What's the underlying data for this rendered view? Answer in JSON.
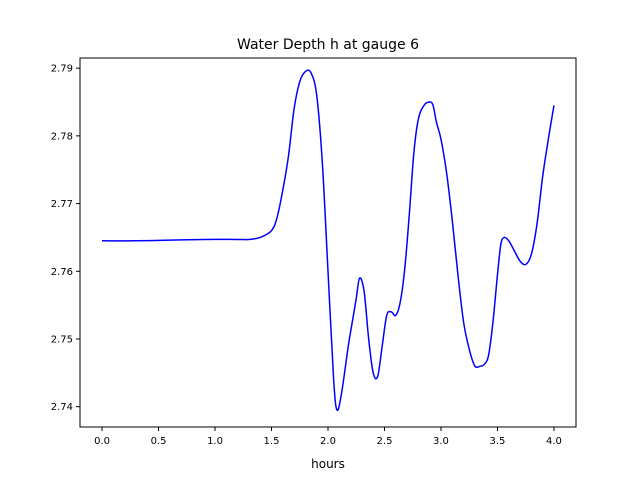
{
  "chart_data": {
    "type": "line",
    "title": "Water Depth h at gauge 6",
    "xlabel": "hours",
    "ylabel": "",
    "xlim": [
      -0.195,
      4.195
    ],
    "ylim": [
      2.737,
      2.7915
    ],
    "xticks": [
      0.0,
      0.5,
      1.0,
      1.5,
      2.0,
      2.5,
      3.0,
      3.5,
      4.0
    ],
    "xtick_labels": [
      "0.0",
      "0.5",
      "1.0",
      "1.5",
      "2.0",
      "2.5",
      "3.0",
      "3.5",
      "4.0"
    ],
    "yticks": [
      2.74,
      2.75,
      2.76,
      2.77,
      2.78,
      2.79
    ],
    "ytick_labels": [
      "2.74",
      "2.75",
      "2.76",
      "2.77",
      "2.78",
      "2.79"
    ],
    "grid": false,
    "series": [
      {
        "color": "#0000ff",
        "x": [
          0.0,
          0.3,
          0.6,
          0.9,
          1.2,
          1.3,
          1.4,
          1.5,
          1.55,
          1.6,
          1.65,
          1.7,
          1.75,
          1.8,
          1.85,
          1.9,
          1.95,
          2.0,
          2.05,
          2.08,
          2.12,
          2.18,
          2.22,
          2.25,
          2.28,
          2.32,
          2.36,
          2.4,
          2.44,
          2.48,
          2.52,
          2.56,
          2.6,
          2.64,
          2.68,
          2.72,
          2.76,
          2.8,
          2.85,
          2.9,
          2.93,
          2.96,
          3.0,
          3.05,
          3.1,
          3.15,
          3.2,
          3.25,
          3.3,
          3.35,
          3.38,
          3.42,
          3.46,
          3.5,
          3.53,
          3.56,
          3.6,
          3.65,
          3.7,
          3.75,
          3.8,
          3.85,
          3.9,
          3.95,
          4.0
        ],
        "y": [
          2.7645,
          2.7645,
          2.7646,
          2.7647,
          2.7647,
          2.7647,
          2.765,
          2.766,
          2.768,
          2.772,
          2.777,
          2.784,
          2.788,
          2.7895,
          2.7893,
          2.786,
          2.776,
          2.76,
          2.744,
          2.7395,
          2.742,
          2.749,
          2.753,
          2.756,
          2.759,
          2.757,
          2.75,
          2.745,
          2.7445,
          2.749,
          2.7535,
          2.754,
          2.7535,
          2.7555,
          2.7605,
          2.7685,
          2.7775,
          2.7825,
          2.7845,
          2.785,
          2.7845,
          2.782,
          2.7795,
          2.7745,
          2.7675,
          2.7595,
          2.7525,
          2.7485,
          2.746,
          2.746,
          2.7462,
          2.7475,
          2.7525,
          2.7595,
          2.764,
          2.765,
          2.7645,
          2.763,
          2.7615,
          2.761,
          2.7625,
          2.767,
          2.774,
          2.7795,
          2.7845
        ]
      }
    ]
  }
}
